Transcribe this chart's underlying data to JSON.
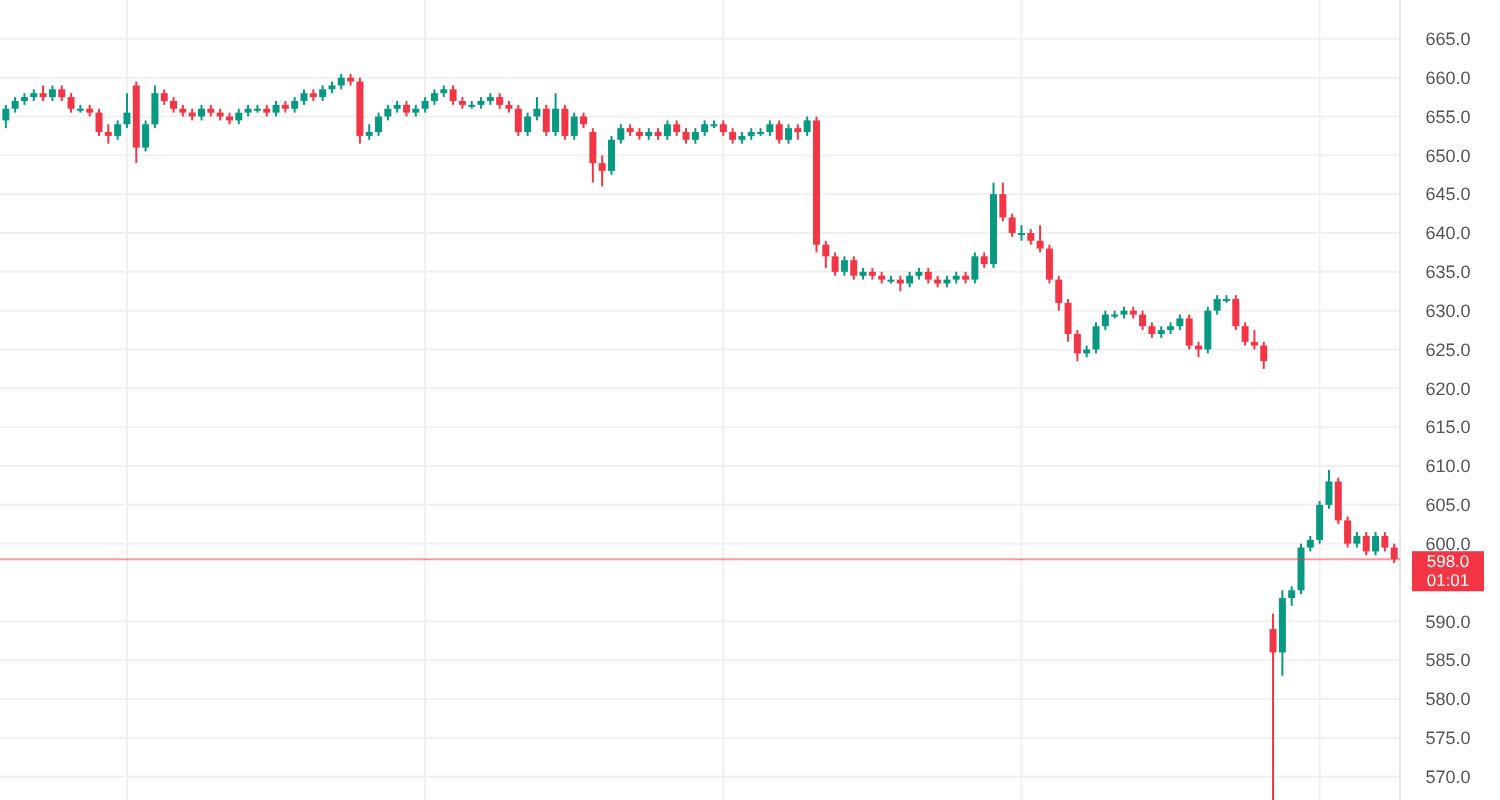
{
  "chart_data": {
    "type": "candlestick",
    "categories": [
      null,
      null,
      null,
      null,
      null,
      null,
      null,
      null,
      null,
      null,
      null,
      null,
      null,
      null,
      null,
      null,
      null,
      null,
      null,
      null,
      null,
      null,
      null,
      null,
      null,
      null,
      null,
      null,
      null,
      null,
      null,
      null,
      null,
      null,
      null,
      null,
      null,
      null,
      null,
      null,
      null,
      null,
      null,
      null,
      null,
      null,
      null,
      null,
      null,
      null,
      null,
      null,
      null,
      null,
      null,
      null,
      null,
      null,
      null,
      null,
      null,
      null,
      null,
      null,
      null,
      null,
      null,
      null,
      null,
      null,
      null,
      null,
      null,
      null,
      null,
      null,
      null,
      null,
      null,
      null,
      null,
      null,
      null,
      null,
      null,
      null,
      null,
      null,
      null,
      null,
      null,
      null,
      null,
      null,
      null,
      null,
      null,
      null,
      null,
      null,
      null,
      null,
      null,
      null,
      null,
      null,
      null,
      null,
      null,
      null,
      null,
      null,
      null,
      null,
      null,
      null,
      null,
      null,
      null,
      null,
      null,
      null,
      null,
      null,
      null,
      null,
      null,
      null,
      null,
      null,
      null,
      null,
      null,
      null,
      null,
      null,
      null,
      null,
      null,
      null,
      null,
      null,
      null,
      null,
      null,
      null,
      null,
      null,
      null,
      null
    ],
    "ohlc": [
      [
        654.5,
        656.5,
        653.5,
        656
      ],
      [
        656,
        657.5,
        655.5,
        657
      ],
      [
        657,
        658,
        656.5,
        657.5
      ],
      [
        657.5,
        658.5,
        657,
        658
      ],
      [
        658,
        659,
        657,
        657.5
      ],
      [
        657.5,
        659,
        657,
        658.5
      ],
      [
        658.5,
        659,
        657,
        657.5
      ],
      [
        657.5,
        658,
        655.5,
        656
      ],
      [
        656,
        656.5,
        655.5,
        656
      ],
      [
        656,
        656.5,
        655,
        655.5
      ],
      [
        655.5,
        656,
        652.5,
        653
      ],
      [
        653,
        654,
        651.5,
        652.5
      ],
      [
        652.5,
        654.5,
        652,
        654
      ],
      [
        654,
        658,
        653.5,
        655.5
      ],
      [
        659,
        659.5,
        649,
        651
      ],
      [
        651,
        654.5,
        650.5,
        654
      ],
      [
        654,
        659,
        653.5,
        658
      ],
      [
        658,
        658.5,
        656.5,
        657
      ],
      [
        657,
        657.5,
        655.5,
        656
      ],
      [
        656,
        656.5,
        655,
        655.5
      ],
      [
        655.5,
        656,
        654.5,
        655
      ],
      [
        655,
        656.5,
        654.5,
        656
      ],
      [
        656,
        656.5,
        655,
        655.5
      ],
      [
        655.5,
        656,
        654.5,
        655
      ],
      [
        655,
        655.5,
        654,
        654.5
      ],
      [
        654.5,
        656,
        654,
        655.5
      ],
      [
        655.5,
        656.5,
        655,
        656
      ],
      [
        656,
        656.5,
        655.5,
        656
      ],
      [
        656,
        656.5,
        655,
        655.5
      ],
      [
        655.5,
        657,
        655,
        656.5
      ],
      [
        656.5,
        657,
        655.5,
        656
      ],
      [
        656,
        657.5,
        655.5,
        657
      ],
      [
        657,
        658.5,
        656.5,
        658
      ],
      [
        658,
        658.5,
        657,
        657.5
      ],
      [
        657.5,
        659,
        657,
        658.5
      ],
      [
        658.5,
        659.5,
        658,
        659
      ],
      [
        659,
        660.5,
        658.5,
        660
      ],
      [
        660,
        660.5,
        659,
        659.5
      ],
      [
        659.5,
        660,
        651.5,
        652.5
      ],
      [
        652.5,
        654,
        652,
        653
      ],
      [
        653,
        655.5,
        652.5,
        655
      ],
      [
        655,
        656.5,
        654.5,
        656
      ],
      [
        656,
        657,
        655.5,
        656.5
      ],
      [
        656.5,
        657,
        655,
        655.5
      ],
      [
        655.5,
        656.5,
        655,
        656
      ],
      [
        656,
        657.5,
        655.5,
        657
      ],
      [
        657,
        658.5,
        656.5,
        658
      ],
      [
        658,
        659,
        657.5,
        658.5
      ],
      [
        658.5,
        659,
        656.5,
        657
      ],
      [
        657,
        657.5,
        656,
        656.5
      ],
      [
        656.5,
        657,
        656,
        656.5
      ],
      [
        656.5,
        657.5,
        656,
        657
      ],
      [
        657,
        658,
        656.5,
        657.5
      ],
      [
        657.5,
        658,
        656,
        656.5
      ],
      [
        656.5,
        657,
        655.5,
        656
      ],
      [
        656,
        656.5,
        652.5,
        653
      ],
      [
        653,
        655.5,
        652.5,
        655
      ],
      [
        655,
        657.5,
        654.5,
        656
      ],
      [
        656,
        656.5,
        652.5,
        653
      ],
      [
        653,
        658,
        652.5,
        656
      ],
      [
        656,
        656.5,
        652,
        652.5
      ],
      [
        652.5,
        655.5,
        652,
        655
      ],
      [
        655,
        655.5,
        653.5,
        654
      ],
      [
        653,
        653.5,
        646.5,
        649
      ],
      [
        649,
        650,
        646,
        648
      ],
      [
        648,
        652.5,
        647.5,
        652
      ],
      [
        652,
        654,
        651.5,
        653.5
      ],
      [
        653.5,
        654,
        652.5,
        653
      ],
      [
        653,
        653.5,
        652,
        652.5
      ],
      [
        652.5,
        653.5,
        652,
        653
      ],
      [
        653,
        653.5,
        652,
        652.5
      ],
      [
        652.5,
        654.5,
        652,
        654
      ],
      [
        654,
        654.5,
        652.5,
        653
      ],
      [
        653,
        653.5,
        651.5,
        652
      ],
      [
        652,
        653.5,
        651.5,
        653
      ],
      [
        653,
        654.5,
        652.5,
        654
      ],
      [
        654,
        654.5,
        653.5,
        654
      ],
      [
        654,
        654.5,
        652.5,
        653
      ],
      [
        653,
        653.5,
        651.5,
        652
      ],
      [
        652,
        653,
        651.5,
        652.5
      ],
      [
        652.5,
        653.5,
        652,
        653
      ],
      [
        653,
        653.5,
        652.5,
        653
      ],
      [
        653,
        654.5,
        652.5,
        654
      ],
      [
        654,
        654.5,
        651.5,
        652
      ],
      [
        652,
        654,
        651.5,
        653.5
      ],
      [
        653.5,
        654,
        652,
        653
      ],
      [
        653,
        655,
        652.5,
        654.5
      ],
      [
        654.5,
        655,
        637.5,
        638.5
      ],
      [
        638.5,
        639,
        635.5,
        637
      ],
      [
        637,
        637.5,
        634.5,
        635
      ],
      [
        635,
        637,
        634.5,
        636.5
      ],
      [
        636.5,
        637,
        634,
        634.5
      ],
      [
        634.5,
        635.5,
        634,
        635
      ],
      [
        635,
        635.5,
        634,
        634.5
      ],
      [
        634.5,
        635,
        633.5,
        634
      ],
      [
        634,
        634.5,
        633.5,
        634
      ],
      [
        634,
        634.5,
        632.5,
        633.5
      ],
      [
        633.5,
        635,
        633,
        634.5
      ],
      [
        634.5,
        635.5,
        634,
        635
      ],
      [
        635,
        635.5,
        633.5,
        634
      ],
      [
        634,
        634.5,
        633,
        633.5
      ],
      [
        633.5,
        634.5,
        633,
        634
      ],
      [
        634,
        635,
        633.5,
        634.5
      ],
      [
        634.5,
        635,
        633.5,
        634
      ],
      [
        634,
        637.5,
        633.5,
        637
      ],
      [
        637,
        637.5,
        635.5,
        636
      ],
      [
        636,
        646.5,
        635.5,
        645
      ],
      [
        645,
        646.5,
        641.5,
        642
      ],
      [
        642,
        642.5,
        639.5,
        640
      ],
      [
        640,
        641,
        639,
        640
      ],
      [
        640,
        640.5,
        638.5,
        639
      ],
      [
        639,
        641,
        637.5,
        638
      ],
      [
        638,
        638.5,
        633.5,
        634
      ],
      [
        634,
        634.5,
        630,
        631
      ],
      [
        631,
        631.5,
        626,
        627
      ],
      [
        627,
        627.5,
        623.5,
        624.5
      ],
      [
        624.5,
        625.5,
        624,
        625
      ],
      [
        625,
        628.5,
        624.5,
        628
      ],
      [
        628,
        630,
        627.5,
        629.5
      ],
      [
        629.5,
        630,
        629,
        629.5
      ],
      [
        629.5,
        630.5,
        629,
        630
      ],
      [
        630,
        630.5,
        629,
        629.5
      ],
      [
        629.5,
        630,
        627.5,
        628
      ],
      [
        628,
        628.5,
        626.5,
        627
      ],
      [
        627,
        628,
        626.5,
        627.5
      ],
      [
        627.5,
        628.5,
        627,
        628
      ],
      [
        628,
        629.5,
        627.5,
        629
      ],
      [
        629,
        629.5,
        625,
        625.5
      ],
      [
        625.5,
        626,
        624,
        625
      ],
      [
        625,
        630.5,
        624.5,
        630
      ],
      [
        630,
        632,
        629.5,
        631.5
      ],
      [
        631.5,
        632,
        631,
        631.5
      ],
      [
        631.5,
        632,
        627.5,
        628
      ],
      [
        628,
        628.5,
        625.5,
        626
      ],
      [
        626,
        627.5,
        625,
        625.5
      ],
      [
        625.5,
        626,
        622.5,
        623.5
      ],
      [
        589,
        591,
        567,
        586
      ],
      [
        586,
        594,
        583,
        593
      ],
      [
        593,
        594.5,
        592,
        594
      ],
      [
        594,
        600,
        593.5,
        599.5
      ],
      [
        599.5,
        601,
        599,
        600.5
      ],
      [
        600.5,
        605.5,
        600,
        605
      ],
      [
        605,
        609.5,
        604.5,
        608
      ],
      [
        608,
        608.5,
        602.5,
        603
      ],
      [
        603,
        603.5,
        599.5,
        600
      ],
      [
        600,
        601.5,
        599.5,
        601
      ],
      [
        601,
        601.5,
        598.5,
        599
      ],
      [
        599,
        601.5,
        598.5,
        601
      ],
      [
        601,
        601.5,
        599,
        599.5
      ],
      [
        599.5,
        600,
        597.5,
        598
      ]
    ],
    "ylim": [
      567,
      670
    ],
    "yticks": [
      {
        "value": 570,
        "label": "570.0"
      },
      {
        "value": 575,
        "label": "575.0"
      },
      {
        "value": 580,
        "label": "580.0"
      },
      {
        "value": 585,
        "label": "585.0"
      },
      {
        "value": 590,
        "label": "590.0"
      },
      {
        "value": 600,
        "label": "600.0"
      },
      {
        "value": 605,
        "label": "605.0"
      },
      {
        "value": 610,
        "label": "610.0"
      },
      {
        "value": 615,
        "label": "615.0"
      },
      {
        "value": 620,
        "label": "620.0"
      },
      {
        "value": 625,
        "label": "625.0"
      },
      {
        "value": 630,
        "label": "630.0"
      },
      {
        "value": 635,
        "label": "635.0"
      },
      {
        "value": 640,
        "label": "640.0"
      },
      {
        "value": 645,
        "label": "645.0"
      },
      {
        "value": 650,
        "label": "650.0"
      },
      {
        "value": 655,
        "label": "655.0"
      },
      {
        "value": 660,
        "label": "660.0"
      },
      {
        "value": 665,
        "label": "665.0"
      }
    ],
    "grid": true,
    "ref_lines": [
      {
        "axis": "y",
        "value": 598,
        "label": "598.0",
        "color": "#f23645"
      }
    ],
    "annotations": [
      "01:01"
    ]
  }
}
